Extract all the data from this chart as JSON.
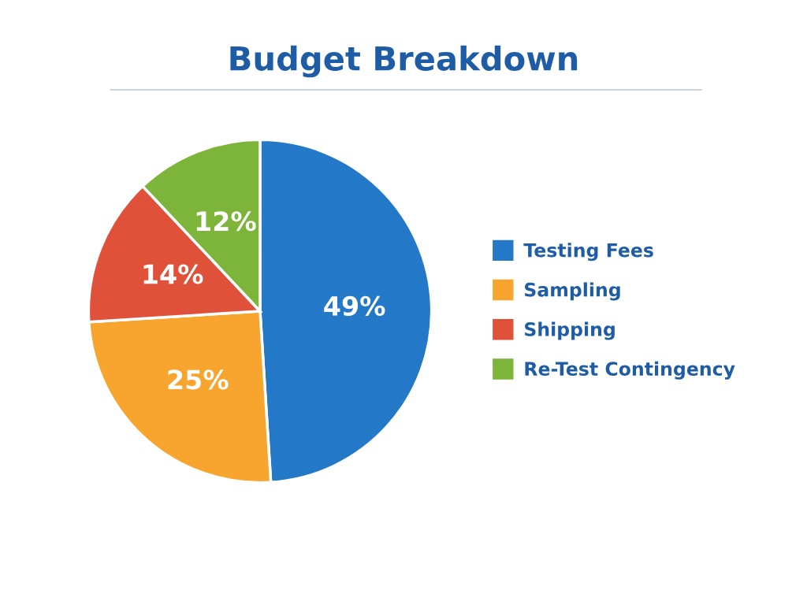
{
  "chart_data": {
    "type": "pie",
    "title": "Budget Breakdown",
    "categories": [
      "Testing Fees",
      "Sampling",
      "Shipping",
      "Re-Test Contingency"
    ],
    "values": [
      49,
      25,
      14,
      12
    ],
    "colors": [
      "#2478c8",
      "#f7a52e",
      "#e0513a",
      "#7db43a"
    ],
    "value_labels": [
      "49%",
      "25%",
      "14%",
      "12%"
    ],
    "legend": "right"
  }
}
